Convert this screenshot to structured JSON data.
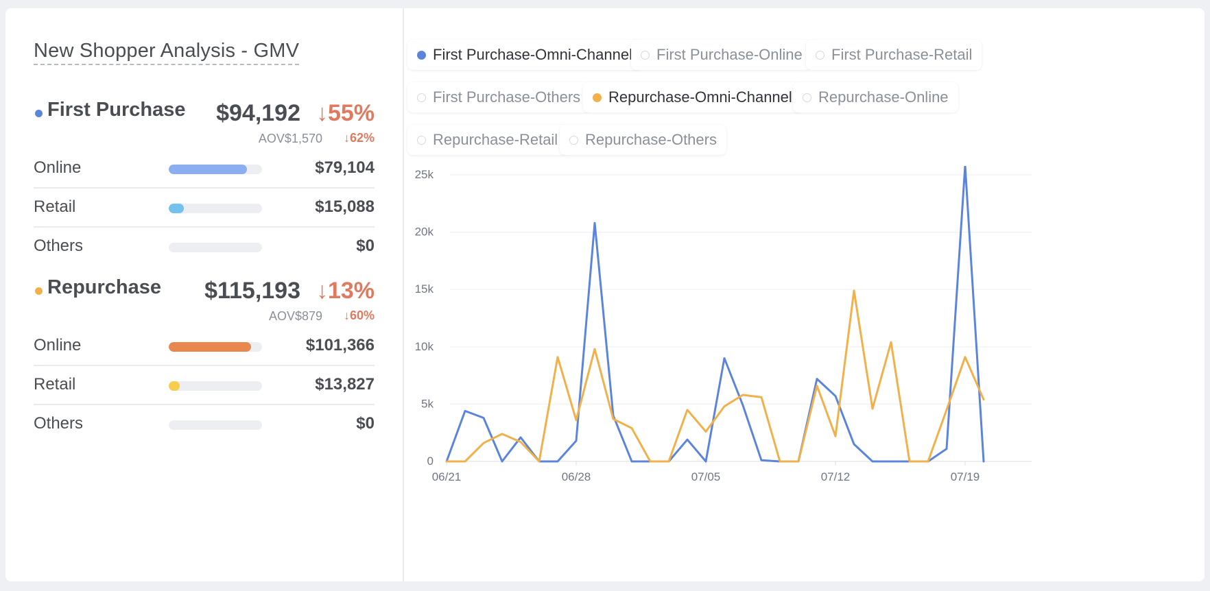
{
  "title": "New Shopper Analysis - GMV",
  "first_purchase": {
    "name": "First Purchase",
    "color": "#5b84dc",
    "total": "$94,192",
    "change": "↓55%",
    "aov": "AOV$1,570",
    "aov_change": "↓62%",
    "rows": [
      {
        "label": "Online",
        "value": "$79,104",
        "fill": 0.84,
        "color": "#8aaef0"
      },
      {
        "label": "Retail",
        "value": "$15,088",
        "fill": 0.16,
        "color": "#72c1ee"
      },
      {
        "label": "Others",
        "value": "$0",
        "fill": 0,
        "color": "#cccccc"
      }
    ]
  },
  "repurchase": {
    "name": "Repurchase",
    "color": "#f2b04a",
    "total": "$115,193",
    "change": "↓13%",
    "aov": "AOV$879",
    "aov_change": "↓60%",
    "rows": [
      {
        "label": "Online",
        "value": "$101,366",
        "fill": 0.88,
        "color": "#e8884e"
      },
      {
        "label": "Retail",
        "value": "$13,827",
        "fill": 0.12,
        "color": "#f6cd4c"
      },
      {
        "label": "Others",
        "value": "$0",
        "fill": 0,
        "color": "#cccccc"
      }
    ]
  },
  "legend": [
    {
      "label": "First Purchase-Omni-Channel",
      "active": true,
      "color": "#5b84dc"
    },
    {
      "label": "First Purchase-Online",
      "active": false
    },
    {
      "label": "First Purchase-Retail",
      "active": false
    },
    {
      "label": "First Purchase-Others",
      "active": false
    },
    {
      "label": "Repurchase-Omni-Channel",
      "active": true,
      "color": "#f2b04a"
    },
    {
      "label": "Repurchase-Online",
      "active": false
    },
    {
      "label": "Repurchase-Retail",
      "active": false
    },
    {
      "label": "Repurchase-Others",
      "active": false
    }
  ],
  "chart_data": {
    "type": "line",
    "x": [
      "06/21",
      "06/22",
      "06/23",
      "06/24",
      "06/25",
      "06/26",
      "06/27",
      "06/28",
      "06/29",
      "06/30",
      "07/01",
      "07/02",
      "07/03",
      "07/04",
      "07/05",
      "07/06",
      "07/07",
      "07/08",
      "07/09",
      "07/10",
      "07/11",
      "07/12",
      "07/13",
      "07/14",
      "07/15",
      "07/16",
      "07/17",
      "07/18",
      "07/19",
      "07/20"
    ],
    "x_ticks": [
      "06/21",
      "06/28",
      "07/05",
      "07/12",
      "07/19"
    ],
    "y_ticks": [
      0,
      5000,
      10000,
      15000,
      20000,
      25000
    ],
    "y_tick_labels": [
      "0",
      "5k",
      "10k",
      "15k",
      "20k",
      "25k"
    ],
    "ylim": [
      0,
      25000
    ],
    "grid": true,
    "series": [
      {
        "name": "First Purchase-Omni-Channel",
        "color": "#5b84dc",
        "values": [
          0,
          4400,
          3800,
          0,
          2100,
          0,
          0,
          1800,
          20800,
          4000,
          0,
          0,
          0,
          1900,
          0,
          9000,
          4900,
          100,
          0,
          0,
          7200,
          5700,
          1500,
          0,
          0,
          0,
          0,
          1100,
          25800,
          0
        ]
      },
      {
        "name": "Repurchase-Omni-Channel",
        "color": "#f2b04a",
        "values": [
          0,
          0,
          1600,
          2400,
          1700,
          0,
          9100,
          3600,
          9800,
          3700,
          2900,
          0,
          0,
          4500,
          2600,
          4800,
          5800,
          5600,
          0,
          0,
          6600,
          2200,
          14900,
          4600,
          10400,
          0,
          0,
          4500,
          9100,
          5400
        ]
      }
    ]
  }
}
